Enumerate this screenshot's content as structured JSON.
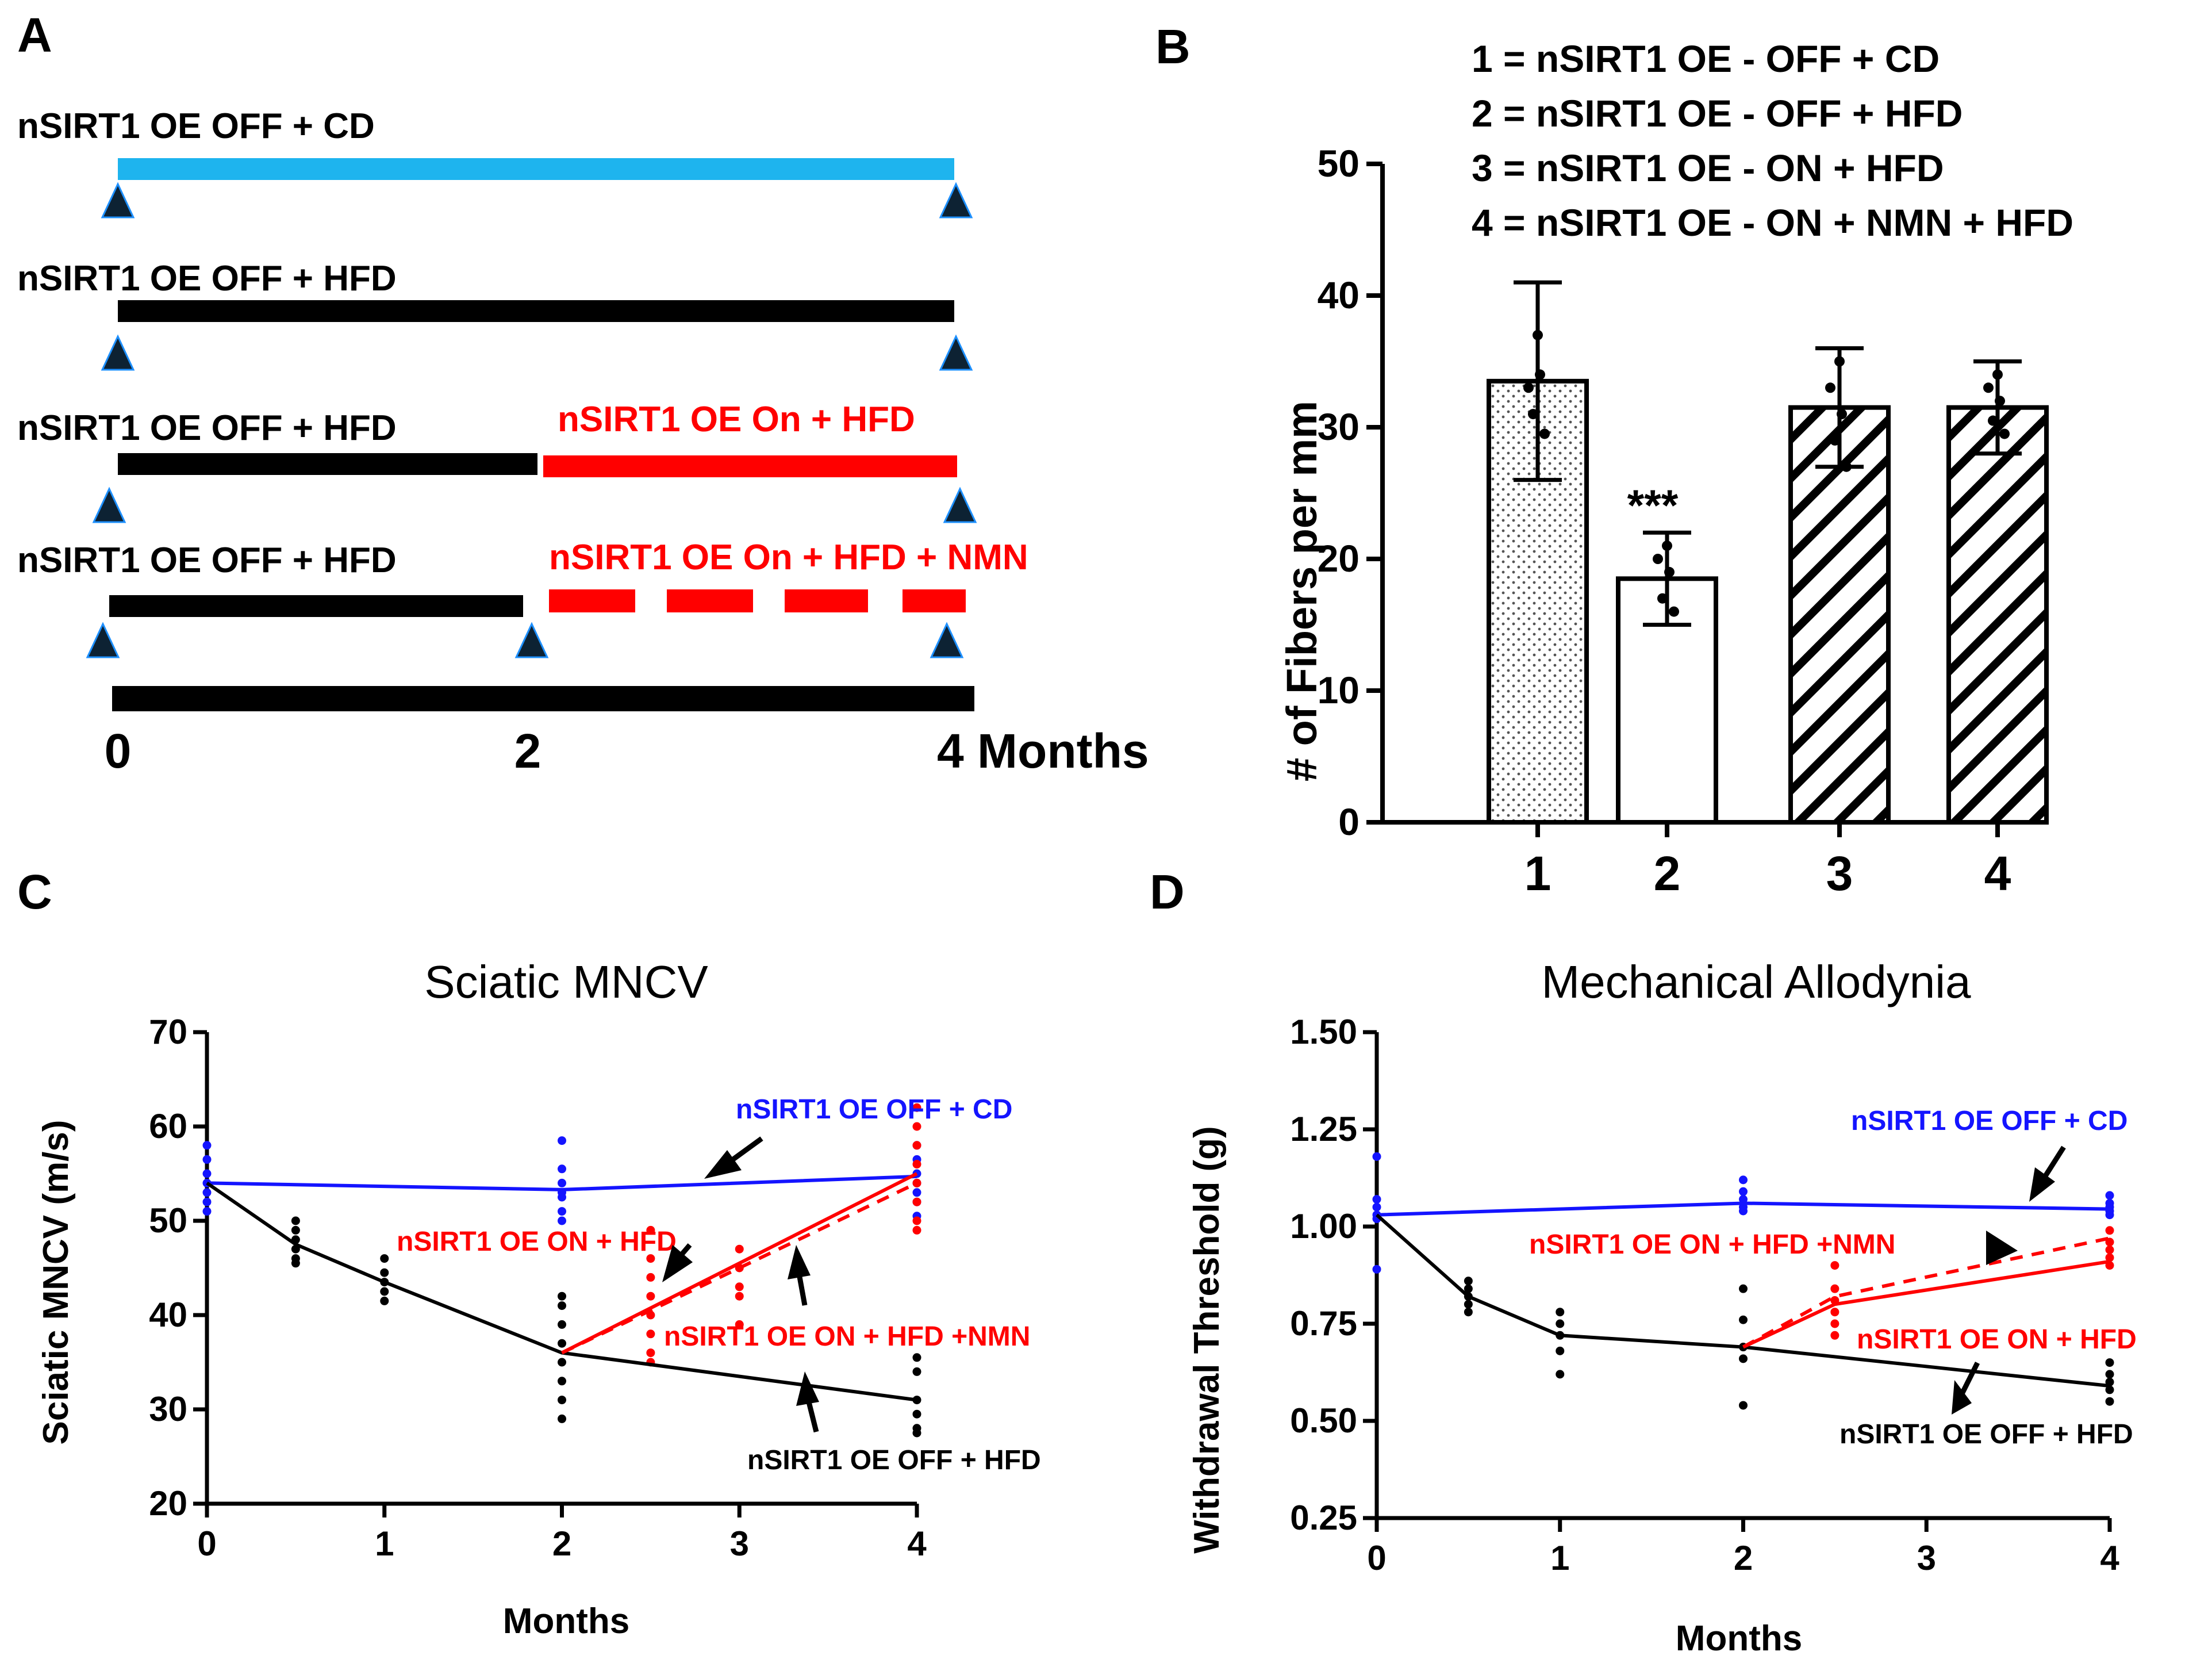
{
  "colors": {
    "blue_light": "#1EB4EE",
    "blue": "#1414FF",
    "red": "#FF0000",
    "black": "#000000",
    "triangle": "#0D2233",
    "triangle_edge": "#1E90FF"
  },
  "panel_a": {
    "letter": "A",
    "rows": [
      {
        "label": "nSIRT1 OE OFF + CD",
        "phase2_label": ""
      },
      {
        "label": "nSIRT1 OE OFF + HFD",
        "phase2_label": ""
      },
      {
        "label": "nSIRT1 OE OFF + HFD",
        "phase2_label": "nSIRT1 OE On + HFD"
      },
      {
        "label": "nSIRT1 OE OFF + HFD",
        "phase2_label": "nSIRT1 OE On + HFD + NMN"
      }
    ],
    "axis_ticks": [
      "0",
      "2",
      "4 Months"
    ]
  },
  "panel_b": {
    "letter": "B",
    "legend": [
      "1 = nSIRT1 OE - OFF + CD",
      "2 = nSIRT1 OE - OFF + HFD",
      "3 = nSIRT1 OE - ON + HFD",
      "4 = nSIRT1 OE - ON + NMN + HFD"
    ],
    "significance": "***"
  },
  "panel_c": {
    "letter": "C",
    "annotations": {
      "cd": "nSIRT1 OE OFF + CD",
      "on_hfd": "nSIRT1 OE ON + HFD",
      "on_hfd_nmn": "nSIRT1 OE ON + HFD +NMN",
      "off_hfd": "nSIRT1 OE OFF + HFD"
    }
  },
  "panel_d": {
    "letter": "D",
    "annotations": {
      "cd": "nSIRT1 OE OFF + CD",
      "on_hfd_nmn": "nSIRT1 OE ON + HFD +NMN",
      "on_hfd": "nSIRT1 OE ON + HFD",
      "off_hfd": "nSIRT1 OE OFF + HFD"
    }
  },
  "chart_data": [
    {
      "type": "bar",
      "title": "",
      "xlabel": "",
      "ylabel": "# of Fibers per mm",
      "categories": [
        "1",
        "2",
        "3",
        "4"
      ],
      "values": [
        33.5,
        18.5,
        31.5,
        31.5
      ],
      "error": [
        7.5,
        3.5,
        4.5,
        3.5
      ],
      "points": [
        [
          37,
          34,
          31,
          29.5,
          33
        ],
        [
          21,
          19,
          17,
          16,
          20
        ],
        [
          35,
          31,
          29,
          27,
          33
        ],
        [
          34,
          32,
          30.5,
          29.5,
          33
        ]
      ],
      "patterns": [
        "dots",
        "none",
        "hatch",
        "hatch"
      ],
      "ylim": [
        0,
        50
      ],
      "yticks": [
        "0",
        "10",
        "20",
        "30",
        "40",
        "50"
      ]
    },
    {
      "type": "line",
      "title": "Sciatic MNCV",
      "xlabel": "Months",
      "ylabel": "Sciatic MNCV (m/s)",
      "xlim": [
        0,
        4
      ],
      "ylim": [
        20,
        70
      ],
      "xticks": [
        "0",
        "1",
        "2",
        "3",
        "4"
      ],
      "yticks": [
        "20",
        "30",
        "40",
        "50",
        "60",
        "70"
      ],
      "series": [
        {
          "name": "nSIRT1 OE OFF + CD",
          "color": "#1414FF",
          "dash": false,
          "x": [
            0,
            2,
            4
          ],
          "y": [
            54,
            53.3,
            54.7
          ]
        },
        {
          "name": "nSIRT1 OE OFF + HFD",
          "color": "#000000",
          "dash": false,
          "x": [
            0,
            0.5,
            1,
            2,
            4
          ],
          "y": [
            54,
            47.5,
            43.5,
            36,
            31
          ]
        },
        {
          "name": "nSIRT1 OE ON + HFD",
          "color": "#FF0000",
          "dash": false,
          "x": [
            2,
            4
          ],
          "y": [
            36,
            55
          ]
        },
        {
          "name": "nSIRT1 OE ON + HFD +NMN",
          "color": "#FF0000",
          "dash": true,
          "x": [
            2,
            4
          ],
          "y": [
            36,
            54
          ]
        }
      ],
      "scatter": [
        {
          "color": "#1414FF",
          "x": 0,
          "y": [
            58,
            56.5,
            55,
            54,
            53,
            52,
            51
          ]
        },
        {
          "color": "#1414FF",
          "x": 2,
          "y": [
            58.5,
            55.5,
            54,
            53,
            52.5,
            51,
            50
          ]
        },
        {
          "color": "#1414FF",
          "x": 4,
          "y": [
            58,
            56.5,
            55,
            54,
            53,
            52,
            50.5
          ]
        },
        {
          "color": "#000000",
          "x": 0.5,
          "y": [
            50,
            49,
            48,
            47,
            46,
            45.5
          ]
        },
        {
          "color": "#000000",
          "x": 1,
          "y": [
            46,
            44.5,
            43.5,
            42.5,
            41.5
          ]
        },
        {
          "color": "#000000",
          "x": 2,
          "y": [
            42,
            41,
            39,
            37,
            35,
            33,
            31,
            29
          ]
        },
        {
          "color": "#000000",
          "x": 4,
          "y": [
            35.5,
            34,
            31,
            29.5,
            28,
            27.5
          ]
        },
        {
          "color": "#FF0000",
          "x": 2.5,
          "y": [
            49,
            46,
            44,
            42,
            40,
            38,
            36,
            35
          ]
        },
        {
          "color": "#FF0000",
          "x": 3,
          "y": [
            47,
            45,
            43,
            42,
            39
          ]
        },
        {
          "color": "#FF0000",
          "x": 4,
          "y": [
            62,
            60,
            58,
            56,
            54,
            52,
            50,
            49
          ]
        }
      ]
    },
    {
      "type": "line",
      "title": "Mechanical Allodynia",
      "xlabel": "Months",
      "ylabel": "Withdrawal Threshold (g)",
      "xlim": [
        0,
        4
      ],
      "ylim": [
        0.25,
        1.5
      ],
      "xticks": [
        "0",
        "1",
        "2",
        "3",
        "4"
      ],
      "yticks": [
        "0.25",
        "0.50",
        "0.75",
        "1.00",
        "1.25",
        "1.50"
      ],
      "series": [
        {
          "name": "nSIRT1 OE OFF + CD",
          "color": "#1414FF",
          "dash": false,
          "x": [
            0,
            2,
            4
          ],
          "y": [
            1.03,
            1.06,
            1.045
          ]
        },
        {
          "name": "nSIRT1 OE OFF + HFD",
          "color": "#000000",
          "dash": false,
          "x": [
            0,
            0.5,
            1,
            2,
            4
          ],
          "y": [
            1.03,
            0.82,
            0.72,
            0.69,
            0.59
          ]
        },
        {
          "name": "nSIRT1 OE ON + HFD",
          "color": "#FF0000",
          "dash": false,
          "x": [
            2,
            2.5,
            4
          ],
          "y": [
            0.69,
            0.8,
            0.91
          ]
        },
        {
          "name": "nSIRT1 OE ON + HFD +NMN",
          "color": "#FF0000",
          "dash": true,
          "x": [
            2,
            2.5,
            4
          ],
          "y": [
            0.69,
            0.82,
            0.97
          ]
        }
      ],
      "scatter": [
        {
          "color": "#1414FF",
          "x": 0,
          "y": [
            1.18,
            1.07,
            1.05,
            1.03,
            1.02,
            0.89
          ]
        },
        {
          "color": "#1414FF",
          "x": 2,
          "y": [
            1.12,
            1.09,
            1.07,
            1.05,
            1.04
          ]
        },
        {
          "color": "#1414FF",
          "x": 4,
          "y": [
            1.08,
            1.06,
            1.05,
            1.04,
            1.03
          ]
        },
        {
          "color": "#000000",
          "x": 0.5,
          "y": [
            0.86,
            0.84,
            0.82,
            0.8,
            0.78
          ]
        },
        {
          "color": "#000000",
          "x": 1,
          "y": [
            0.78,
            0.75,
            0.72,
            0.68,
            0.62
          ]
        },
        {
          "color": "#000000",
          "x": 2,
          "y": [
            0.84,
            0.76,
            0.69,
            0.66,
            0.54
          ]
        },
        {
          "color": "#000000",
          "x": 4,
          "y": [
            0.65,
            0.62,
            0.6,
            0.58,
            0.55
          ]
        },
        {
          "color": "#FF0000",
          "x": 2.5,
          "y": [
            0.9,
            0.84,
            0.81,
            0.78,
            0.75,
            0.72
          ]
        },
        {
          "color": "#FF0000",
          "x": 4,
          "y": [
            0.99,
            0.96,
            0.94,
            0.92,
            0.9
          ]
        }
      ]
    }
  ]
}
